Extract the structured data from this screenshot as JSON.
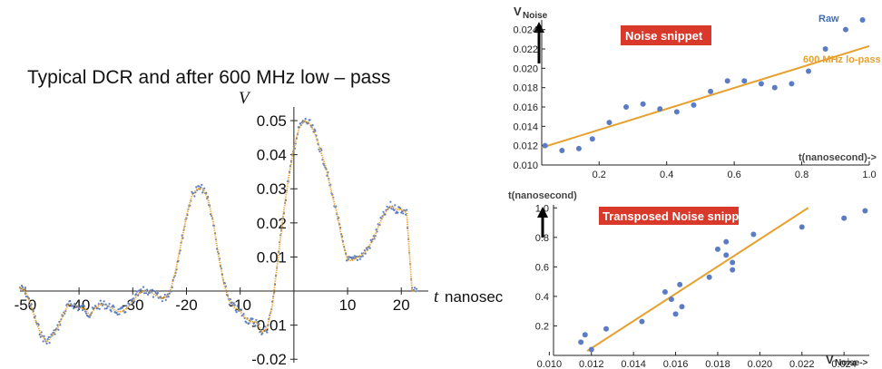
{
  "colors": {
    "raw": "#5b7cc4",
    "lowpass": "#e6a02d",
    "badge": "#d9392b"
  },
  "chart_data": [
    {
      "type": "line",
      "title": "Typical DCR and after 600 MHz low – pass",
      "xlabel": "t nanosec",
      "ylabel": "V",
      "xlim": [
        -51,
        23
      ],
      "ylim": [
        -0.021,
        0.054
      ],
      "xticks": [
        -50,
        -40,
        -30,
        -20,
        -10,
        10,
        20
      ],
      "yticks": [
        -0.02,
        -0.01,
        0.01,
        0.02,
        0.03,
        0.04,
        0.05
      ],
      "xtick_labels": [
        "-50",
        "-40",
        "-30",
        "-20",
        "-10",
        "10",
        "20"
      ],
      "ytick_labels": [
        "-0.02",
        "-0.01",
        "0.01",
        "0.02",
        "0.03",
        "0.04",
        "0.05"
      ],
      "series": [
        {
          "style": "dotted",
          "x": [
            -51,
            -50,
            -49,
            -48,
            -47,
            -46,
            -45,
            -44,
            -43,
            -42,
            -41,
            -40,
            -39,
            -38,
            -37,
            -36,
            -35,
            -34,
            -33,
            -32,
            -31,
            -30,
            -29,
            -28,
            -27,
            -26,
            -25,
            -24,
            -23,
            -22,
            -21,
            -20,
            -19,
            -18,
            -17,
            -16,
            -15,
            -14,
            -13,
            -12,
            -11,
            -10,
            -9,
            -8,
            -7,
            -6,
            -5,
            -4,
            -3,
            -2,
            -1,
            0,
            1,
            2,
            3,
            4,
            5,
            6,
            7,
            8,
            9,
            10,
            11,
            12,
            13,
            14,
            15,
            16,
            17,
            18,
            19,
            20,
            21,
            22,
            23
          ],
          "y": [
            0.001,
            0.0,
            -0.004,
            -0.009,
            -0.013,
            -0.015,
            -0.013,
            -0.011,
            -0.007,
            -0.004,
            -0.004,
            -0.005,
            -0.005,
            -0.007,
            -0.005,
            -0.004,
            -0.004,
            -0.005,
            -0.006,
            -0.006,
            -0.005,
            -0.003,
            -0.001,
            0.0,
            0.0,
            -0.001,
            -0.002,
            -0.002,
            0.0,
            0.006,
            0.014,
            0.022,
            0.028,
            0.03,
            0.03,
            0.027,
            0.02,
            0.01,
            0.002,
            -0.003,
            -0.005,
            -0.006,
            -0.008,
            -0.009,
            -0.009,
            -0.012,
            -0.011,
            -0.004,
            0.009,
            0.022,
            0.033,
            0.042,
            0.048,
            0.05,
            0.049,
            0.046,
            0.041,
            0.036,
            0.029,
            0.023,
            0.015,
            0.009,
            0.009,
            0.01,
            0.011,
            0.013,
            0.016,
            0.02,
            0.023,
            0.025,
            0.024,
            0.024,
            0.023,
            0.0,
            0.0
          ]
        }
      ]
    },
    {
      "type": "scatter",
      "title": "Noise snippet",
      "xlabel": "t(nanosecond)->",
      "ylabel_main": "V",
      "ylabel_sub": "Noise",
      "xlim": [
        0.03,
        1.0
      ],
      "ylim": [
        0.01,
        0.025
      ],
      "xticks": [
        0.2,
        0.4,
        0.6,
        0.8,
        1.0
      ],
      "yticks": [
        0.01,
        0.012,
        0.014,
        0.016,
        0.018,
        0.02,
        0.022,
        0.024
      ],
      "xtick_labels": [
        "0.2",
        "0.4",
        "0.6",
        "0.8",
        "1.0"
      ],
      "ytick_labels": [
        "0.010",
        "0.012",
        "0.014",
        "0.016",
        "0.018",
        "0.020",
        "0.022",
        "0.024"
      ],
      "series": [
        {
          "name": "Raw",
          "x": [
            0.04,
            0.09,
            0.14,
            0.18,
            0.23,
            0.28,
            0.33,
            0.38,
            0.43,
            0.48,
            0.53,
            0.58,
            0.63,
            0.68,
            0.72,
            0.77,
            0.82,
            0.87,
            0.93,
            0.98
          ],
          "y": [
            0.012,
            0.0115,
            0.0117,
            0.0127,
            0.0144,
            0.016,
            0.0163,
            0.0158,
            0.0155,
            0.0162,
            0.0176,
            0.0187,
            0.0187,
            0.0184,
            0.018,
            0.0184,
            0.0197,
            0.022,
            0.024,
            0.025
          ]
        },
        {
          "name": "600 MHz lo-pass",
          "x": [
            0.03,
            1.0
          ],
          "y": [
            0.0118,
            0.0223
          ]
        }
      ]
    },
    {
      "type": "scatter",
      "title": "Transposed Noise snippet",
      "xlabel_main": "V",
      "xlabel_sub": "Noise->",
      "ylabel": "t(nanosecond)",
      "xlim": [
        0.0102,
        0.0252
      ],
      "ylim": [
        0.0,
        1.02
      ],
      "xticks": [
        0.01,
        0.012,
        0.014,
        0.016,
        0.018,
        0.02,
        0.022,
        0.024
      ],
      "yticks": [
        0.2,
        0.4,
        0.6,
        0.8,
        1.0
      ],
      "xtick_labels": [
        "0.010",
        "0.012",
        "0.014",
        "0.016",
        "0.018",
        "0.020",
        "0.022",
        "0.024"
      ],
      "ytick_labels": [
        "0.2",
        "0.4",
        "0.6",
        "0.8",
        "1.0"
      ],
      "series": [
        {
          "x": [
            0.0115,
            0.0117,
            0.012,
            0.0127,
            0.0144,
            0.0155,
            0.0158,
            0.016,
            0.0162,
            0.0163,
            0.0176,
            0.018,
            0.0184,
            0.0184,
            0.0187,
            0.0187,
            0.0197,
            0.022,
            0.024,
            0.025
          ],
          "y": [
            0.09,
            0.14,
            0.04,
            0.18,
            0.23,
            0.43,
            0.38,
            0.28,
            0.48,
            0.33,
            0.53,
            0.72,
            0.68,
            0.77,
            0.58,
            0.63,
            0.82,
            0.87,
            0.93,
            0.98
          ]
        },
        {
          "x": [
            0.0118,
            0.0223
          ],
          "y": [
            0.03,
            1.0
          ]
        }
      ]
    }
  ]
}
